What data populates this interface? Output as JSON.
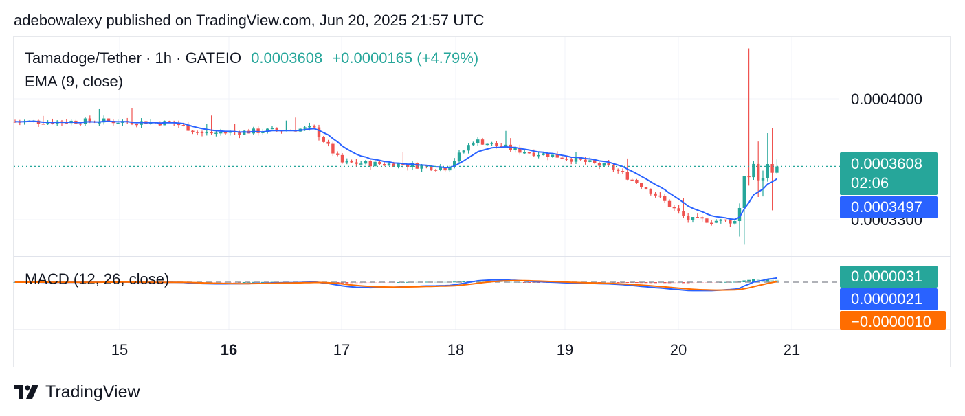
{
  "header": {
    "published": "adebowalexy published on TradingView.com, Jun 20, 2025 21:57 UTC"
  },
  "legend": {
    "symbol": "Tamadoge/Tether · 1h · GATEIO",
    "last": "0.0003608",
    "change": "+0.0000165 (+4.79%)",
    "ema_label": "EMA (9, close)",
    "macd_label": "MACD (12, 26, close)"
  },
  "price_tags": {
    "last_price": "0.0003608",
    "countdown": "02:06",
    "ema_value": "0.0003497",
    "macd_hist": "0.0000031",
    "macd_line": "0.0000021",
    "macd_signal": "−0.0000010"
  },
  "colors": {
    "up": "#26a69a",
    "down": "#ef5350",
    "ema": "#2962ff",
    "macd_line": "#2962ff",
    "signal": "#ff6d00",
    "hist_up_strong": "#26a69a",
    "hist_up_weak": "#b2dfdb",
    "hist_down_strong": "#ef5350",
    "hist_down_weak": "#ffcdd2",
    "grid": "#f0f3fa",
    "tag_green": "#26a69a",
    "tag_blue": "#2962ff",
    "tag_orange": "#ff6d00"
  },
  "footer": {
    "brand": "TradingView"
  },
  "chart_data": {
    "type": "candlestick",
    "title": "Tamadoge/Tether · 1h · GATEIO",
    "x_tick_labels": [
      "15",
      "16",
      "17",
      "18",
      "19",
      "20",
      "21"
    ],
    "y_tick_labels": [
      "0.0004000",
      "0.0003300"
    ],
    "ylim": [
      0.000312,
      0.000413
    ],
    "last_price": 0.0003608,
    "grid": true,
    "approx_close_path": [
      {
        "t": "Jun 14 10:00",
        "close": 0.0003868
      },
      {
        "t": "Jun 14 20:00",
        "close": 0.0003872
      },
      {
        "t": "Jun 15 12:00",
        "close": 0.000386
      },
      {
        "t": "Jun 15 18:00",
        "close": 0.00038
      },
      {
        "t": "Jun 16 04:00",
        "close": 0.000381
      },
      {
        "t": "Jun 16 12:00",
        "close": 0.000382
      },
      {
        "t": "Jun 16 18:00",
        "close": 0.000383
      },
      {
        "t": "Jun 17 00:00",
        "close": 0.000363
      },
      {
        "t": "Jun 17 12:00",
        "close": 0.000362
      },
      {
        "t": "Jun 17 22:00",
        "close": 0.00036
      },
      {
        "t": "Jun 18 04:00",
        "close": 0.000376
      },
      {
        "t": "Jun 18 14:00",
        "close": 0.00037
      },
      {
        "t": "Jun 19 00:00",
        "close": 0.000366
      },
      {
        "t": "Jun 19 10:00",
        "close": 0.00036
      },
      {
        "t": "Jun 19 18:00",
        "close": 0.000347
      },
      {
        "t": "Jun 20 02:00",
        "close": 0.00033
      },
      {
        "t": "Jun 20 12:00",
        "close": 0.000329
      },
      {
        "t": "Jun 20 14:00",
        "close": 0.000355
      },
      {
        "t": "Jun 20 21:00",
        "close": 0.0003608
      }
    ],
    "ema": {
      "name": "EMA (9, close)",
      "last": 0.0003497
    },
    "macd": {
      "name": "MACD (12, 26, close)",
      "histogram": 3.1e-06,
      "macd": 2.1e-06,
      "signal": -1e-06
    }
  }
}
